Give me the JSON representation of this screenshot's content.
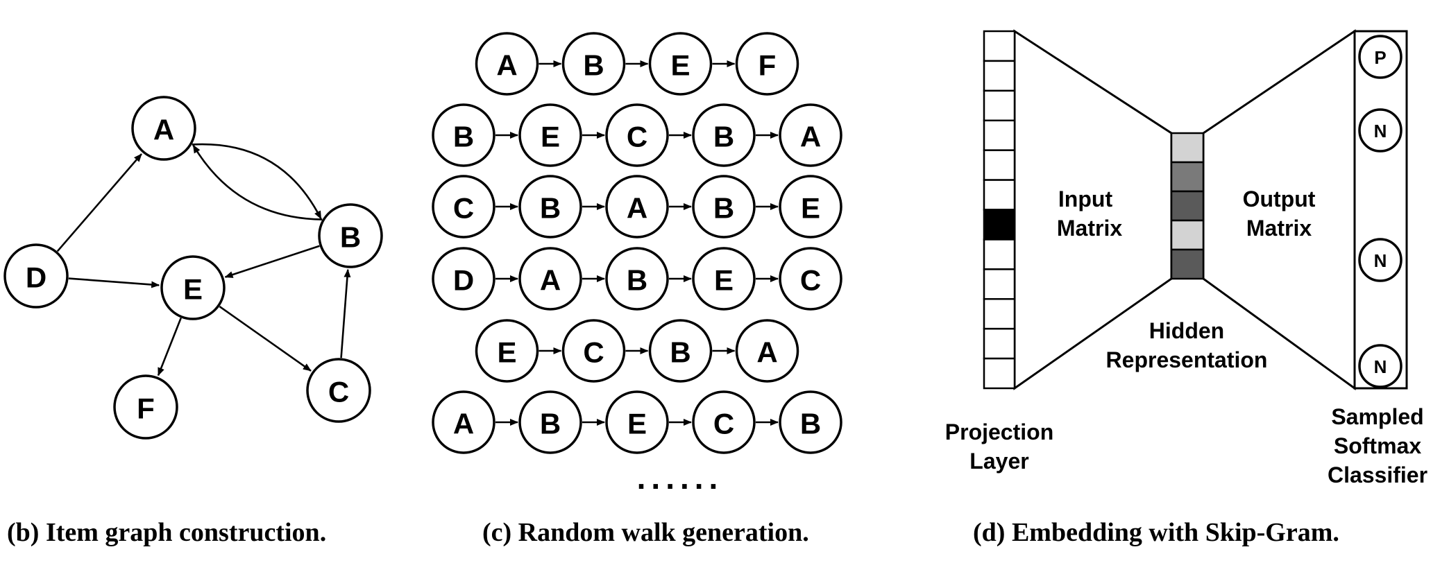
{
  "graph": {
    "nodes": [
      {
        "id": "A",
        "label": "A"
      },
      {
        "id": "B",
        "label": "B"
      },
      {
        "id": "C",
        "label": "C"
      },
      {
        "id": "D",
        "label": "D"
      },
      {
        "id": "E",
        "label": "E"
      },
      {
        "id": "F",
        "label": "F"
      }
    ],
    "edges": [
      {
        "from": "A",
        "to": "B"
      },
      {
        "from": "B",
        "to": "A"
      },
      {
        "from": "D",
        "to": "A"
      },
      {
        "from": "D",
        "to": "E"
      },
      {
        "from": "B",
        "to": "E"
      },
      {
        "from": "E",
        "to": "F"
      },
      {
        "from": "E",
        "to": "C"
      },
      {
        "from": "C",
        "to": "B"
      }
    ],
    "caption": "(b) Item graph construction."
  },
  "walks": {
    "sequences": [
      [
        "A",
        "B",
        "E",
        "F"
      ],
      [
        "B",
        "E",
        "C",
        "B",
        "A"
      ],
      [
        "C",
        "B",
        "A",
        "B",
        "E"
      ],
      [
        "D",
        "A",
        "B",
        "E",
        "C"
      ],
      [
        "E",
        "C",
        "B",
        "A"
      ],
      [
        "A",
        "B",
        "E",
        "C",
        "B"
      ]
    ],
    "ellipsis": "......",
    "caption": "(c) Random walk generation."
  },
  "skipgram": {
    "projection_label_1": "Projection",
    "projection_label_2": "Layer",
    "input_label_1": "Input",
    "input_label_2": "Matrix",
    "output_label_1": "Output",
    "output_label_2": "Matrix",
    "hidden_label_1": "Hidden",
    "hidden_label_2": "Representation",
    "classifier_label_1": "Sampled",
    "classifier_label_2": "Softmax",
    "classifier_label_3": "Classifier",
    "output_nodes": [
      "P",
      "N",
      "N",
      "N"
    ],
    "hidden_cells": [
      "#d3d3d3",
      "#7a7a7a",
      "#5a5a5a",
      "#d3d3d3",
      "#5a5a5a"
    ],
    "projection_active_color": "#000000",
    "caption": "(d) Embedding with Skip-Gram."
  }
}
